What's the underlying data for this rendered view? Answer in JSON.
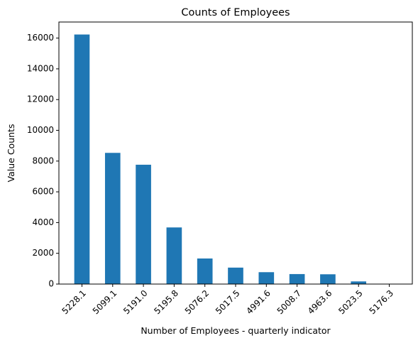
{
  "chart_data": {
    "type": "bar",
    "title": "Counts of Employees",
    "xlabel": "Number of Employees - quarterly indicator",
    "ylabel": "Value Counts",
    "categories": [
      "5228.1",
      "5099.1",
      "5191.0",
      "5195.8",
      "5076.2",
      "5017.5",
      "4991.6",
      "5008.7",
      "4963.6",
      "5023.5",
      "5176.3"
    ],
    "values": [
      16234,
      8534,
      7763,
      3683,
      1663,
      1070,
      773,
      650,
      635,
      172,
      10
    ],
    "ylim": [
      0,
      17046
    ],
    "yticks": [
      0,
      2000,
      4000,
      6000,
      8000,
      10000,
      12000,
      14000,
      16000
    ],
    "bar_color": "#1f77b4",
    "grid": false,
    "legend": false
  }
}
